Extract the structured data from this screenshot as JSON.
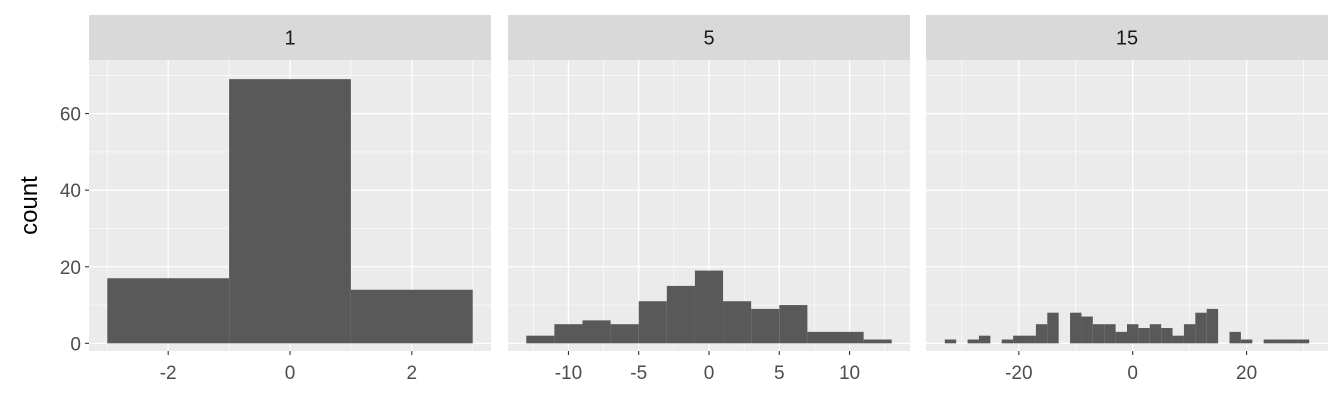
{
  "chart_data": {
    "type": "bar",
    "ylabel": "count",
    "ylim": [
      -2,
      74
    ],
    "y_ticks": [
      "0",
      "20",
      "40",
      "60"
    ],
    "y_tick_values": [
      0,
      20,
      40,
      60
    ],
    "bar_color": "#595959",
    "panel_background": "#ebebeb",
    "strip_background": "#d9d9d9",
    "grid": true,
    "panels": [
      {
        "strip_label": "1",
        "xlim": [
          -3.3,
          3.3
        ],
        "x_ticks": [
          "-2",
          "0",
          "2"
        ],
        "x_tick_values": [
          -2,
          0,
          2
        ],
        "bars": [
          {
            "x0": -3,
            "x1": -1,
            "count": 17
          },
          {
            "x0": -1,
            "x1": 1,
            "count": 69
          },
          {
            "x0": 1,
            "x1": 3,
            "count": 14
          }
        ]
      },
      {
        "strip_label": "5",
        "xlim": [
          -14.3,
          14.3
        ],
        "x_ticks": [
          "-10",
          "-5",
          "0",
          "5",
          "10"
        ],
        "x_tick_values": [
          -10,
          -5,
          0,
          5,
          10
        ],
        "bars": [
          {
            "x0": -13,
            "x1": -11,
            "count": 2
          },
          {
            "x0": -11,
            "x1": -9,
            "count": 5
          },
          {
            "x0": -9,
            "x1": -7,
            "count": 6
          },
          {
            "x0": -7,
            "x1": -5,
            "count": 5
          },
          {
            "x0": -5,
            "x1": -3,
            "count": 11
          },
          {
            "x0": -3,
            "x1": -1,
            "count": 15
          },
          {
            "x0": -1,
            "x1": 1,
            "count": 19
          },
          {
            "x0": 1,
            "x1": 3,
            "count": 11
          },
          {
            "x0": 3,
            "x1": 5,
            "count": 9
          },
          {
            "x0": 5,
            "x1": 7,
            "count": 10
          },
          {
            "x0": 7,
            "x1": 9,
            "count": 3
          },
          {
            "x0": 9,
            "x1": 11,
            "count": 3
          },
          {
            "x0": 11,
            "x1": 13,
            "count": 1
          }
        ]
      },
      {
        "strip_label": "15",
        "xlim": [
          -36.3,
          34.3
        ],
        "x_ticks": [
          "-20",
          "0",
          "20"
        ],
        "x_tick_values": [
          -20,
          0,
          20
        ],
        "bars": [
          {
            "x0": -33,
            "x1": -31,
            "count": 1
          },
          {
            "x0": -29,
            "x1": -27,
            "count": 1
          },
          {
            "x0": -27,
            "x1": -25,
            "count": 2
          },
          {
            "x0": -23,
            "x1": -21,
            "count": 1
          },
          {
            "x0": -21,
            "x1": -19,
            "count": 2
          },
          {
            "x0": -19,
            "x1": -17,
            "count": 2
          },
          {
            "x0": -17,
            "x1": -15,
            "count": 5
          },
          {
            "x0": -15,
            "x1": -13,
            "count": 8
          },
          {
            "x0": -11,
            "x1": -9,
            "count": 8
          },
          {
            "x0": -9,
            "x1": -7,
            "count": 7
          },
          {
            "x0": -7,
            "x1": -5,
            "count": 5
          },
          {
            "x0": -5,
            "x1": -3,
            "count": 5
          },
          {
            "x0": -3,
            "x1": -1,
            "count": 3
          },
          {
            "x0": -1,
            "x1": 1,
            "count": 5
          },
          {
            "x0": 1,
            "x1": 3,
            "count": 4
          },
          {
            "x0": 3,
            "x1": 5,
            "count": 5
          },
          {
            "x0": 5,
            "x1": 7,
            "count": 4
          },
          {
            "x0": 7,
            "x1": 9,
            "count": 2
          },
          {
            "x0": 9,
            "x1": 11,
            "count": 5
          },
          {
            "x0": 11,
            "x1": 13,
            "count": 8
          },
          {
            "x0": 13,
            "x1": 15,
            "count": 9
          },
          {
            "x0": 17,
            "x1": 19,
            "count": 3
          },
          {
            "x0": 19,
            "x1": 21,
            "count": 1
          },
          {
            "x0": 23,
            "x1": 25,
            "count": 1
          },
          {
            "x0": 25,
            "x1": 27,
            "count": 1
          },
          {
            "x0": 27,
            "x1": 29,
            "count": 1
          },
          {
            "x0": 29,
            "x1": 31,
            "count": 1
          }
        ]
      }
    ]
  }
}
